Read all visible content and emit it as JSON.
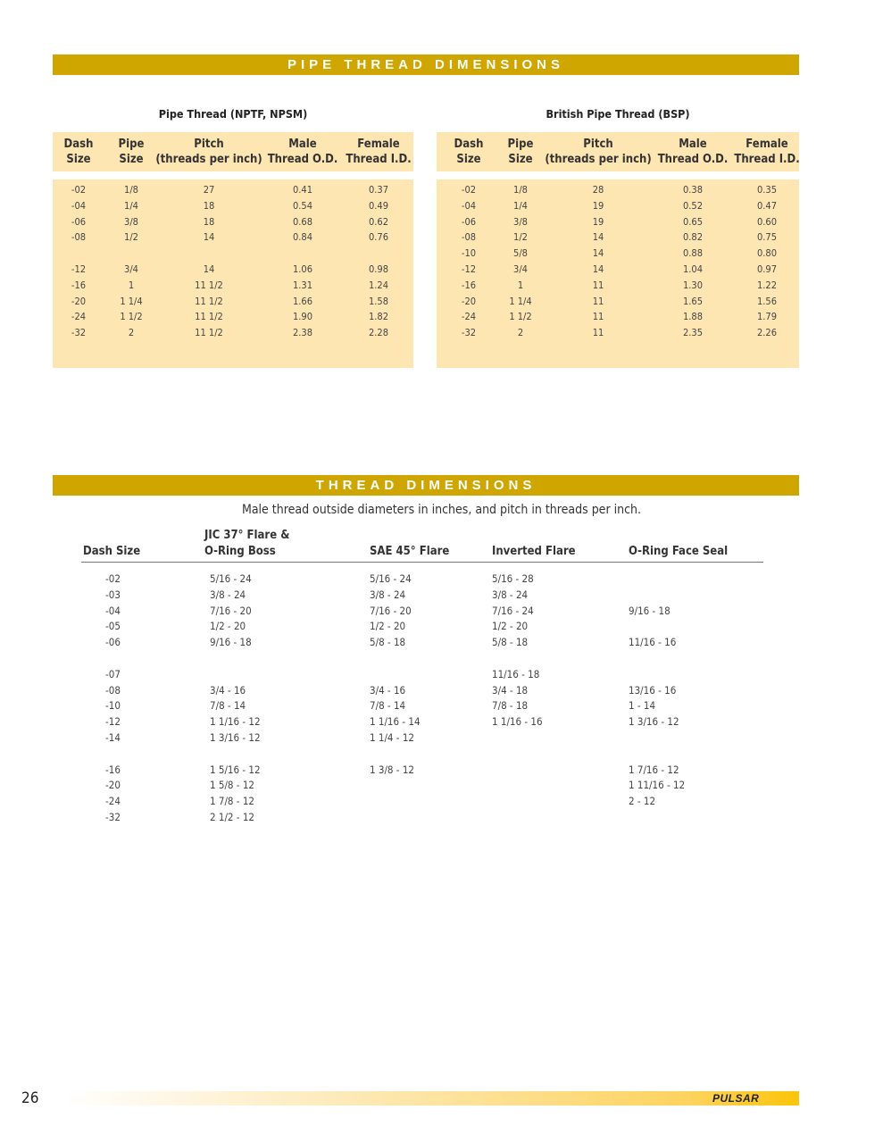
{
  "pipe_section": {
    "banner": "PIPE THREAD DIMENSIONS",
    "tables": [
      {
        "title": "Pipe Thread (NPTF, NPSM)",
        "headers": [
          "Dash\nSize",
          "Pipe\nSize",
          "Pitch\n(threads per inch)",
          "Male\nThread O.D.",
          "Female\nThread I.D."
        ],
        "rows": [
          [
            "-02",
            "1/8",
            "27",
            "0.41",
            "0.37"
          ],
          [
            "-04",
            "1/4",
            "18",
            "0.54",
            "0.49"
          ],
          [
            "-06",
            "3/8",
            "18",
            "0.68",
            "0.62"
          ],
          [
            "-08",
            "1/2",
            "14",
            "0.84",
            "0.76"
          ],
          [],
          [
            "-12",
            "3/4",
            "14",
            "1.06",
            "0.98"
          ],
          [
            "-16",
            "1",
            "11 1/2",
            "1.31",
            "1.24"
          ],
          [
            "-20",
            "1 1/4",
            "11 1/2",
            "1.66",
            "1.58"
          ],
          [
            "-24",
            "1 1/2",
            "11 1/2",
            "1.90",
            "1.82"
          ],
          [
            "-32",
            "2",
            "11 1/2",
            "2.38",
            "2.28"
          ]
        ]
      },
      {
        "title": "British Pipe Thread (BSP)",
        "headers": [
          "Dash\nSize",
          "Pipe\nSize",
          "Pitch\n(threads per inch)",
          "Male\nThread O.D.",
          "Female\nThread I.D."
        ],
        "rows": [
          [
            "-02",
            "1/8",
            "28",
            "0.38",
            "0.35"
          ],
          [
            "-04",
            "1/4",
            "19",
            "0.52",
            "0.47"
          ],
          [
            "-06",
            "3/8",
            "19",
            "0.65",
            "0.60"
          ],
          [
            "-08",
            "1/2",
            "14",
            "0.82",
            "0.75"
          ],
          [
            "-10",
            "5/8",
            "14",
            "0.88",
            "0.80"
          ],
          [
            "-12",
            "3/4",
            "14",
            "1.04",
            "0.97"
          ],
          [
            "-16",
            "1",
            "11",
            "1.30",
            "1.22"
          ],
          [
            "-20",
            "1 1/4",
            "11",
            "1.65",
            "1.56"
          ],
          [
            "-24",
            "1 1/2",
            "11",
            "1.88",
            "1.79"
          ],
          [
            "-32",
            "2",
            "11",
            "2.35",
            "2.26"
          ]
        ]
      }
    ]
  },
  "thread_section": {
    "banner": "THREAD DIMENSIONS",
    "subtitle": "Male thread outside diameters in inches, and pitch in threads per inch.",
    "headers": [
      "Dash Size",
      "JIC 37° Flare &\nO-Ring Boss",
      "SAE 45° Flare",
      "Inverted Flare",
      "O-Ring Face Seal"
    ],
    "rows": [
      [
        "-02",
        "5/16 - 24",
        "5/16 - 24",
        "5/16 - 28",
        ""
      ],
      [
        "-03",
        "3/8 - 24",
        "3/8 - 24",
        "3/8 - 24",
        ""
      ],
      [
        "-04",
        "7/16 - 20",
        "7/16 - 20",
        "7/16 - 24",
        "9/16 - 18"
      ],
      [
        "-05",
        "1/2 - 20",
        "1/2 - 20",
        "1/2 - 20",
        ""
      ],
      [
        "-06",
        "9/16 - 18",
        "5/8 - 18",
        "5/8 - 18",
        "11/16 - 16"
      ],
      [],
      [
        "-07",
        "",
        "",
        "11/16 - 18",
        ""
      ],
      [
        "-08",
        "3/4 - 16",
        "3/4 - 16",
        "3/4 - 18",
        "13/16 - 16"
      ],
      [
        "-10",
        "7/8 - 14",
        "7/8 - 14",
        "7/8 - 18",
        "1 - 14"
      ],
      [
        "-12",
        "1 1/16 - 12",
        "1 1/16 - 14",
        "1 1/16 - 16",
        "1 3/16 - 12"
      ],
      [
        "-14",
        "1 3/16 - 12",
        "1 1/4 - 12",
        "",
        ""
      ],
      [],
      [
        "-16",
        "1 5/16 - 12",
        "1 3/8 - 12",
        "",
        "1 7/16 - 12"
      ],
      [
        "-20",
        "1 5/8 - 12",
        "",
        "",
        "1 11/16 - 12"
      ],
      [
        "-24",
        "1 7/8 - 12",
        "",
        "",
        "2 - 12"
      ],
      [
        "-32",
        "2 1/2 - 12",
        "",
        "",
        ""
      ]
    ]
  },
  "footer": {
    "page_number": "26",
    "logo": "PULSAR",
    "bar_color": "#fcc40a"
  },
  "colors": {
    "banner": "#cfa500",
    "table_bg": "#fee6b3"
  }
}
